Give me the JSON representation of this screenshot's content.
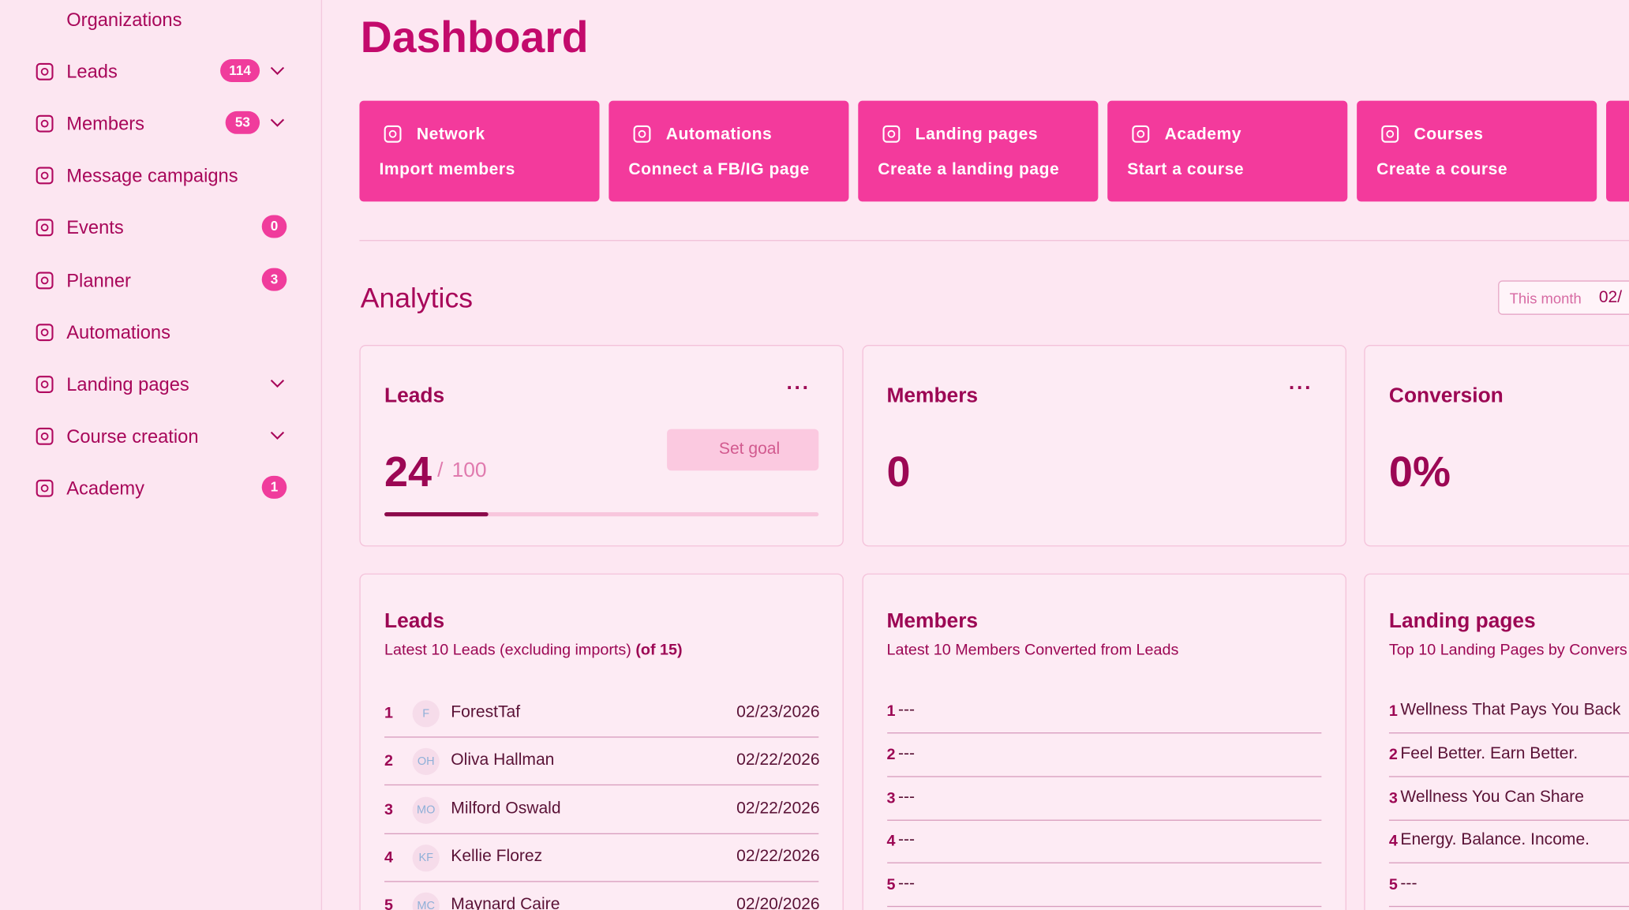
{
  "sidebar": [
    {
      "label": "Organizations",
      "icon": "building"
    },
    {
      "label": "Leads",
      "badge": 114,
      "expandable": true,
      "icon": "funnel"
    },
    {
      "label": "Members",
      "badge": 53,
      "expandable": true,
      "icon": "people"
    },
    {
      "label": "Message campaigns",
      "icon": "megaphone"
    },
    {
      "label": "Events",
      "badge": 0,
      "icon": "calendar"
    },
    {
      "label": "Planner",
      "badge": 3,
      "icon": "clipboard"
    },
    {
      "label": "Automations",
      "icon": "rocket"
    },
    {
      "label": "Landing pages",
      "expandable": true,
      "icon": "monitor"
    },
    {
      "label": "Course creation",
      "expandable": true,
      "icon": "book"
    },
    {
      "label": "Academy",
      "badge": 1,
      "icon": "cap"
    }
  ],
  "header": {
    "title": "Dashboard"
  },
  "quick_actions": [
    {
      "title": "Network",
      "action": "Import members",
      "icon": "people"
    },
    {
      "title": "Automations",
      "action": "Connect a FB/IG page",
      "icon": "rocket"
    },
    {
      "title": "Landing pages",
      "action": "Create a landing page",
      "icon": "monitor"
    },
    {
      "title": "Academy",
      "action": "Start a course",
      "icon": "cap"
    },
    {
      "title": "Courses",
      "action": "Create a course",
      "icon": "book"
    }
  ],
  "analytics": {
    "title": "Analytics",
    "period": "This month",
    "date": "02/"
  },
  "stats": [
    {
      "title": "Leads",
      "value": 24,
      "separator": "/",
      "goal": 100,
      "button": "Set goal"
    },
    {
      "title": "Members",
      "value": 0
    },
    {
      "title": "Conversion",
      "value": "0%"
    }
  ],
  "lists": [
    {
      "title": "Leads",
      "subtitle": "Latest 10 Leads (excluding imports)",
      "count": "(of 15)",
      "rows": [
        {
          "rank": 1,
          "initials": "F",
          "name": "ForestTaf",
          "date": "02/23/2026"
        },
        {
          "rank": 2,
          "initials": "OH",
          "name": "Oliva Hallman",
          "date": "02/22/2026"
        },
        {
          "rank": 3,
          "initials": "MO",
          "name": "Milford Oswald",
          "date": "02/22/2026"
        },
        {
          "rank": 4,
          "initials": "KF",
          "name": "Kellie Florez",
          "date": "02/22/2026"
        },
        {
          "rank": 5,
          "initials": "MC",
          "name": "Maynard Caire",
          "date": "02/20/2026"
        }
      ]
    },
    {
      "title": "Members",
      "subtitle": "Latest 10 Members Converted from Leads",
      "rows": [
        {
          "rank": 1,
          "name": "---"
        },
        {
          "rank": 2,
          "name": "---"
        },
        {
          "rank": 3,
          "name": "---"
        },
        {
          "rank": 4,
          "name": "---"
        },
        {
          "rank": 5,
          "name": "---"
        }
      ]
    },
    {
      "title": "Landing pages",
      "subtitle": "Top 10 Landing Pages by Convers",
      "rows": [
        {
          "rank": 1,
          "name": "Wellness That Pays You Back"
        },
        {
          "rank": 2,
          "name": "Feel Better. Earn Better."
        },
        {
          "rank": 3,
          "name": "Wellness You Can Share"
        },
        {
          "rank": 4,
          "name": "Energy. Balance. Income."
        },
        {
          "rank": 5,
          "name": "---"
        }
      ]
    }
  ]
}
